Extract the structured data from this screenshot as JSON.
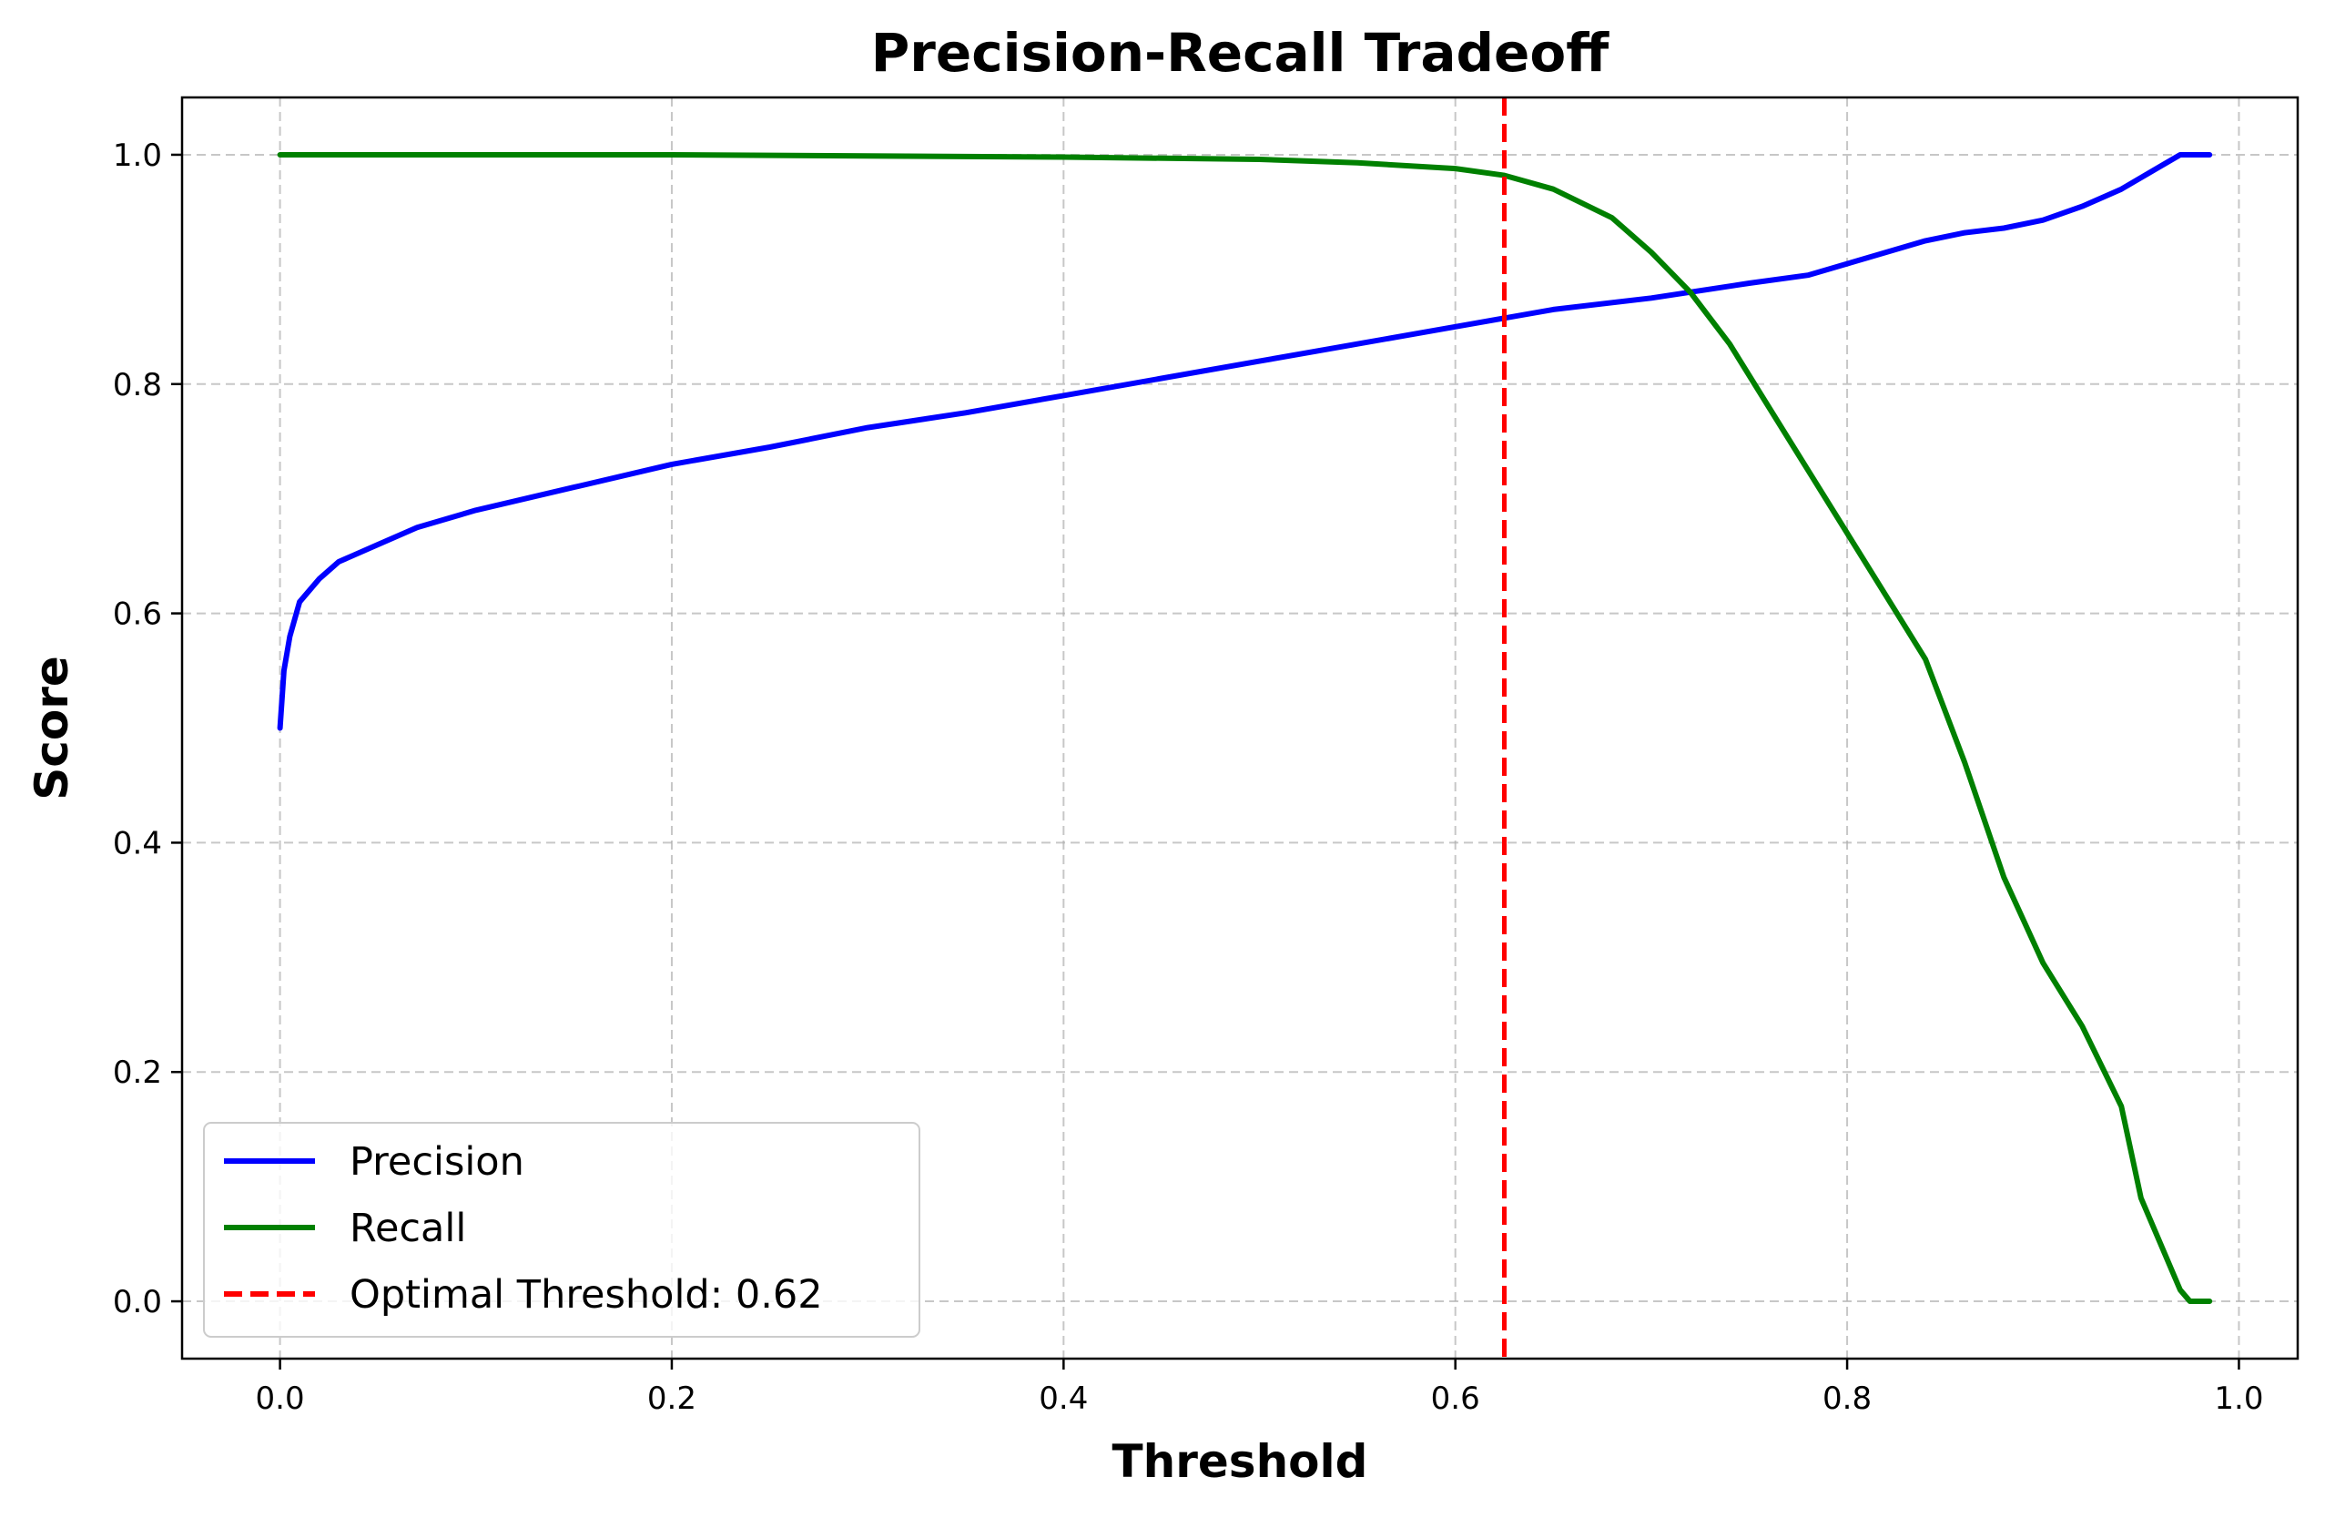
{
  "chart_data": {
    "type": "line",
    "title": "Precision-Recall Tradeoff",
    "xlabel": "Threshold",
    "ylabel": "Score",
    "xlim": [
      -0.05,
      1.03
    ],
    "ylim": [
      -0.05,
      1.05
    ],
    "xticks": [
      0.0,
      0.2,
      0.4,
      0.6,
      0.8,
      1.0
    ],
    "xtick_labels": [
      "0.0",
      "0.2",
      "0.4",
      "0.6",
      "0.8",
      "1.0"
    ],
    "yticks": [
      0.0,
      0.2,
      0.4,
      0.6,
      0.8,
      1.0
    ],
    "ytick_labels": [
      "0.0",
      "0.2",
      "0.4",
      "0.6",
      "0.8",
      "1.0"
    ],
    "grid": true,
    "legend_position": "lower-left",
    "series": [
      {
        "name": "Precision",
        "color": "#0000ff",
        "style": "solid",
        "x": [
          0.0,
          0.002,
          0.005,
          0.01,
          0.02,
          0.03,
          0.05,
          0.07,
          0.1,
          0.15,
          0.2,
          0.25,
          0.3,
          0.35,
          0.4,
          0.45,
          0.5,
          0.55,
          0.6,
          0.65,
          0.7,
          0.75,
          0.78,
          0.8,
          0.82,
          0.84,
          0.86,
          0.88,
          0.9,
          0.92,
          0.94,
          0.96,
          0.97,
          0.975,
          0.985
        ],
        "y": [
          0.5,
          0.55,
          0.58,
          0.61,
          0.63,
          0.645,
          0.66,
          0.675,
          0.69,
          0.71,
          0.73,
          0.745,
          0.762,
          0.775,
          0.79,
          0.805,
          0.82,
          0.835,
          0.85,
          0.865,
          0.875,
          0.888,
          0.895,
          0.905,
          0.915,
          0.925,
          0.932,
          0.936,
          0.943,
          0.955,
          0.97,
          0.99,
          1.0,
          1.0,
          1.0
        ]
      },
      {
        "name": "Recall",
        "color": "#008000",
        "style": "solid",
        "x": [
          0.0,
          0.1,
          0.2,
          0.3,
          0.4,
          0.5,
          0.55,
          0.6,
          0.625,
          0.65,
          0.68,
          0.7,
          0.72,
          0.74,
          0.76,
          0.78,
          0.8,
          0.82,
          0.84,
          0.86,
          0.88,
          0.9,
          0.92,
          0.94,
          0.95,
          0.96,
          0.97,
          0.975,
          0.98,
          0.985
        ],
        "y": [
          1.0,
          1.0,
          1.0,
          0.999,
          0.998,
          0.996,
          0.993,
          0.988,
          0.982,
          0.97,
          0.945,
          0.915,
          0.88,
          0.835,
          0.78,
          0.725,
          0.67,
          0.615,
          0.56,
          0.47,
          0.37,
          0.295,
          0.24,
          0.17,
          0.09,
          0.05,
          0.01,
          0.0,
          0.0,
          0.0
        ]
      }
    ],
    "reference_line": {
      "name": "Optimal Threshold: 0.62",
      "orientation": "vertical",
      "x": 0.625,
      "color": "#ff0000",
      "style": "dashed"
    }
  }
}
